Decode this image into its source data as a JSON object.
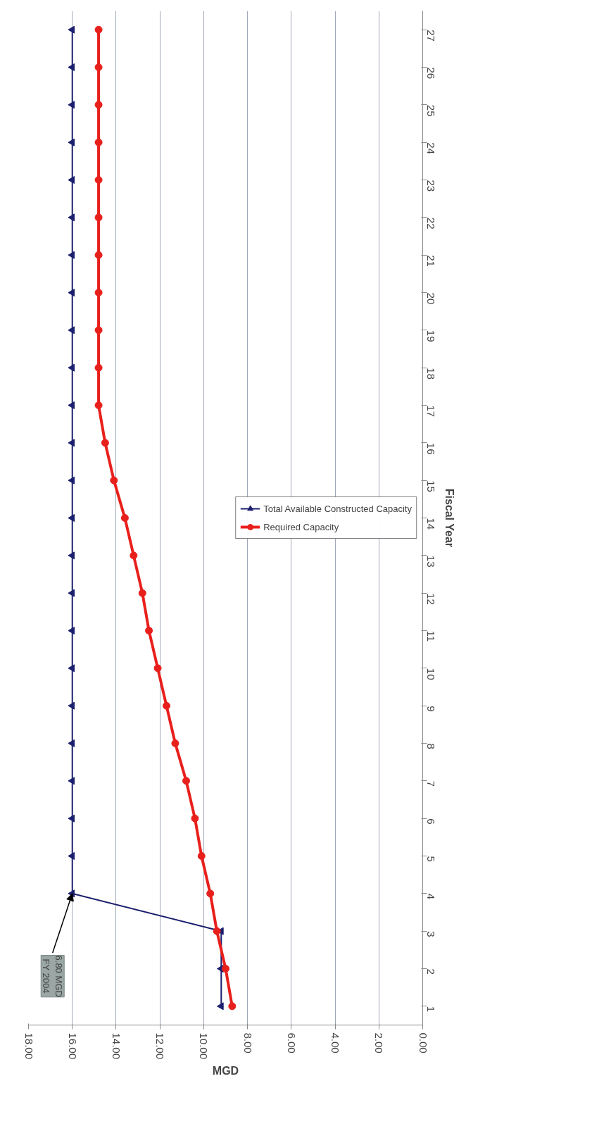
{
  "chart_data": {
    "type": "line",
    "orientation": "horizontal",
    "xlabel": "MGD",
    "ylabel": "Fiscal Year",
    "categories": [
      "27",
      "26",
      "25",
      "24",
      "23",
      "22",
      "21",
      "20",
      "19",
      "18",
      "17",
      "16",
      "15",
      "14",
      "13",
      "12",
      "11",
      "10",
      "9",
      "8",
      "7",
      "6",
      "5",
      "4",
      "3",
      "2",
      "1"
    ],
    "series": [
      {
        "name": "Total Available Constructed Capacity",
        "color": "#1c1f6e",
        "marker": "triangle",
        "values": [
          16.0,
          16.0,
          16.0,
          16.0,
          16.0,
          16.0,
          16.0,
          16.0,
          16.0,
          16.0,
          16.0,
          16.0,
          16.0,
          16.0,
          16.0,
          16.0,
          16.0,
          16.0,
          16.0,
          16.0,
          16.0,
          16.0,
          16.0,
          16.0,
          9.2,
          9.2,
          9.2
        ]
      },
      {
        "name": "Required Capacity",
        "color": "#e8201c",
        "marker": "circle",
        "values": [
          14.8,
          14.8,
          14.8,
          14.8,
          14.8,
          14.8,
          14.8,
          14.8,
          14.8,
          14.8,
          14.8,
          14.5,
          14.1,
          13.6,
          13.2,
          12.8,
          12.5,
          12.1,
          11.7,
          11.3,
          10.8,
          10.4,
          10.1,
          9.7,
          9.4,
          9.0,
          8.7
        ]
      }
    ],
    "xlim": [
      18,
      0
    ],
    "xticks": [
      {
        "value": 0,
        "label": "0.00"
      },
      {
        "value": 2,
        "label": "2.00"
      },
      {
        "value": 4,
        "label": "4.00"
      },
      {
        "value": 6,
        "label": "6.00"
      },
      {
        "value": 8,
        "label": "8.00"
      },
      {
        "value": 10,
        "label": "10.00"
      },
      {
        "value": 12,
        "label": "12.00"
      },
      {
        "value": 14,
        "label": "14.00"
      },
      {
        "value": 16,
        "label": "16.00"
      },
      {
        "value": 18,
        "label": "18.00"
      }
    ],
    "grid": "x",
    "legend": "right",
    "annotations": [
      {
        "text": "6.80 MGD\nFY 2004",
        "x": 16,
        "y": "4"
      }
    ]
  }
}
